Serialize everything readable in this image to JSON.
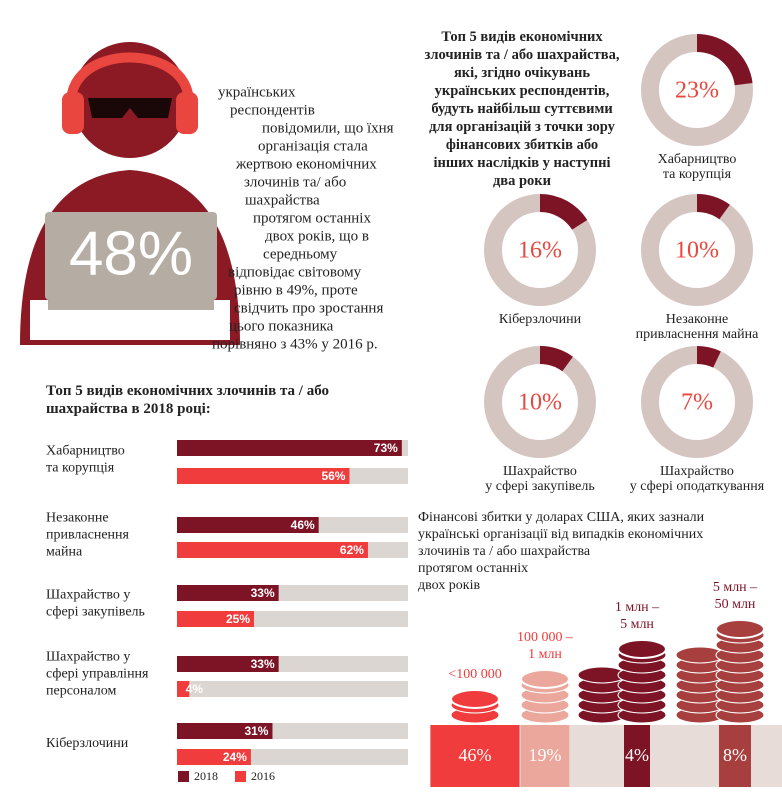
{
  "headline": "48%",
  "intro_lines": [
    "українських",
    "респондентів",
    "повідомили, що їхня",
    "організація стала",
    "жертвою економічних",
    "злочинів та/ або",
    "шахрайства",
    "протягом останніх",
    "двох років, що в",
    "середньому",
    "відповідає світовому",
    "рівню в 49%, проте",
    "свідчить про зростання",
    "цього показника",
    "порівняно з 43% у 2016 р."
  ],
  "chart_data": [
    {
      "type": "hbar",
      "title": "Топ 5 видів економічних злочинів та / або\nшахрайства в 2018 році:",
      "categories": [
        "Хабарництво\nта корупція",
        "Незаконне\nпривласнення\nмайна",
        "Шахрайство у\nсфері закупівель",
        "Шахрайство у\nсфері управління\nперсоналом",
        "Кіберзлочини"
      ],
      "series": [
        {
          "name": "2018",
          "color": "#7d1426",
          "values": [
            73,
            46,
            33,
            33,
            31
          ],
          "value_labels": [
            "73%",
            "46%",
            "33%",
            "33%",
            "31%"
          ]
        },
        {
          "name": "2016",
          "color": "#f03c3c",
          "values": [
            56,
            62,
            25,
            4,
            24
          ],
          "value_labels": [
            "56%",
            "62%",
            "25%",
            "4%",
            "24%"
          ]
        }
      ],
      "xlim": [
        0,
        75
      ],
      "track_color": "#dcd6d2"
    },
    {
      "type": "donut",
      "title": "Топ 5 видів економічних\nзлочинів та / або шахрайства,\nякі, згідно очікувань\nукраїнських респондентів,\nбудуть найбільш суттєвими\nдля організацій з точки зору\nфінансових збитків або\nінших наслідків у наступні\nдва роки",
      "categories": [
        "Хабарництво\nта корупція",
        "Кіберзлочини",
        "Незаконне\nпривласнення майна",
        "Шахрайство\nу сфері закупівель",
        "Шахрайство\nу сфері оподаткування"
      ],
      "values": [
        23,
        16,
        10,
        10,
        7
      ],
      "value_labels": [
        "23%",
        "16%",
        "10%",
        "10%",
        "7%"
      ],
      "color": "#7d1426",
      "track_color": "#d5c5c1",
      "label_color": "#e8463e"
    },
    {
      "type": "coins",
      "title": "Фінансові збитки у доларах США, яких зазнали\nукраїнські організації від випадків економічних\nзлочинів та / або шахрайства\nпротягом останніх\nдвох років",
      "categories": [
        "<100 000",
        "100 000 –\n1 млн",
        "1 млн –\n5 млн",
        "5 млн –\n50 млн"
      ],
      "values": [
        46,
        19,
        4,
        8
      ],
      "value_labels": [
        "46%",
        "19%",
        "4%",
        "8%"
      ],
      "colors": [
        "#f03c3c",
        "#eba79b",
        "#7d1426",
        "#a83f3f"
      ]
    }
  ]
}
